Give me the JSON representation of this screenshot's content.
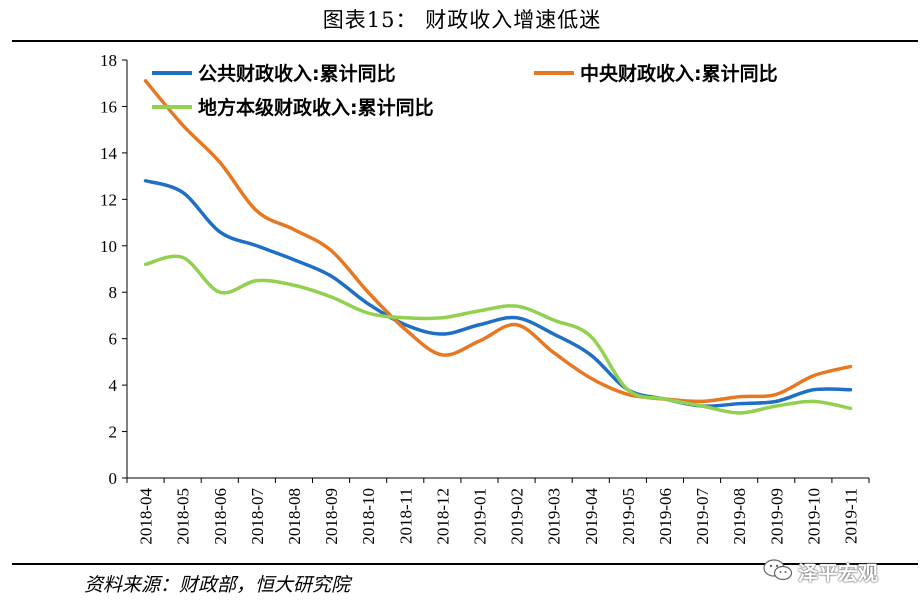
{
  "figure": {
    "title": "图表15：   财政收入增速低迷",
    "source": "资料来源：财政部，恒大研究院",
    "watermark": "泽平宏观",
    "watermark_icon": "wechat-icon"
  },
  "chart_data": {
    "type": "line",
    "title": "财政收入增速低迷",
    "xlabel": "",
    "ylabel": "",
    "ylim": [
      0,
      18
    ],
    "yticks": [
      0,
      2,
      4,
      6,
      8,
      10,
      12,
      14,
      16,
      18
    ],
    "grid": false,
    "legend_position": "top",
    "categories": [
      "2018-04",
      "2018-05",
      "2018-06",
      "2018-07",
      "2018-08",
      "2018-09",
      "2018-10",
      "2018-11",
      "2018-12",
      "2019-01",
      "2019-02",
      "2019-03",
      "2019-04",
      "2019-05",
      "2019-06",
      "2019-07",
      "2019-08",
      "2019-09",
      "2019-10",
      "2019-11"
    ],
    "series": [
      {
        "name": "公共财政收入:累计同比",
        "color": "#1f6fc4",
        "values": [
          12.8,
          12.3,
          10.6,
          10.0,
          9.4,
          8.7,
          7.5,
          6.6,
          6.2,
          6.6,
          6.9,
          6.2,
          5.3,
          3.8,
          3.4,
          3.1,
          3.2,
          3.3,
          3.8,
          3.8
        ]
      },
      {
        "name": "中央财政收入:累计同比",
        "color": "#e87722",
        "values": [
          17.1,
          15.2,
          13.6,
          11.5,
          10.7,
          9.8,
          8.0,
          6.4,
          5.3,
          5.9,
          6.6,
          5.4,
          4.3,
          3.6,
          3.4,
          3.3,
          3.5,
          3.6,
          4.4,
          4.8
        ]
      },
      {
        "name": "地方本级财政收入:累计同比",
        "color": "#92d050",
        "values": [
          9.2,
          9.5,
          8.0,
          8.5,
          8.3,
          7.8,
          7.1,
          6.9,
          6.9,
          7.2,
          7.4,
          6.8,
          6.1,
          3.8,
          3.4,
          3.1,
          2.8,
          3.1,
          3.3,
          3.0
        ]
      }
    ]
  }
}
